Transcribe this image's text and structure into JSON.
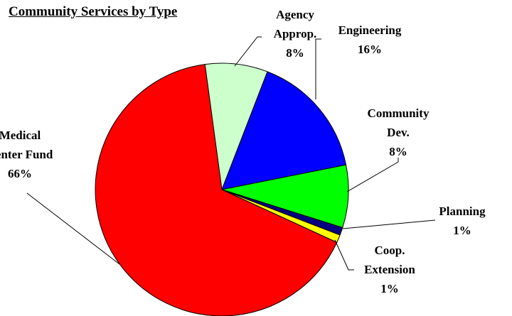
{
  "chart_data": {
    "type": "pie",
    "title": "Community Services by Type",
    "categories": [
      "Agency Approp.",
      "Engineering",
      "Community Dev.",
      "Planning",
      "Coop. Extension",
      "Medical Center Fund"
    ],
    "values": [
      8,
      16,
      8,
      1,
      1,
      66
    ],
    "value_labels": [
      "8%",
      "16%",
      "8%",
      "1%",
      "1%",
      "66%"
    ],
    "colors": [
      "#ccffcc",
      "#0000ff",
      "#00ff00",
      "#000080",
      "#ffff00",
      "#ff0000"
    ]
  }
}
